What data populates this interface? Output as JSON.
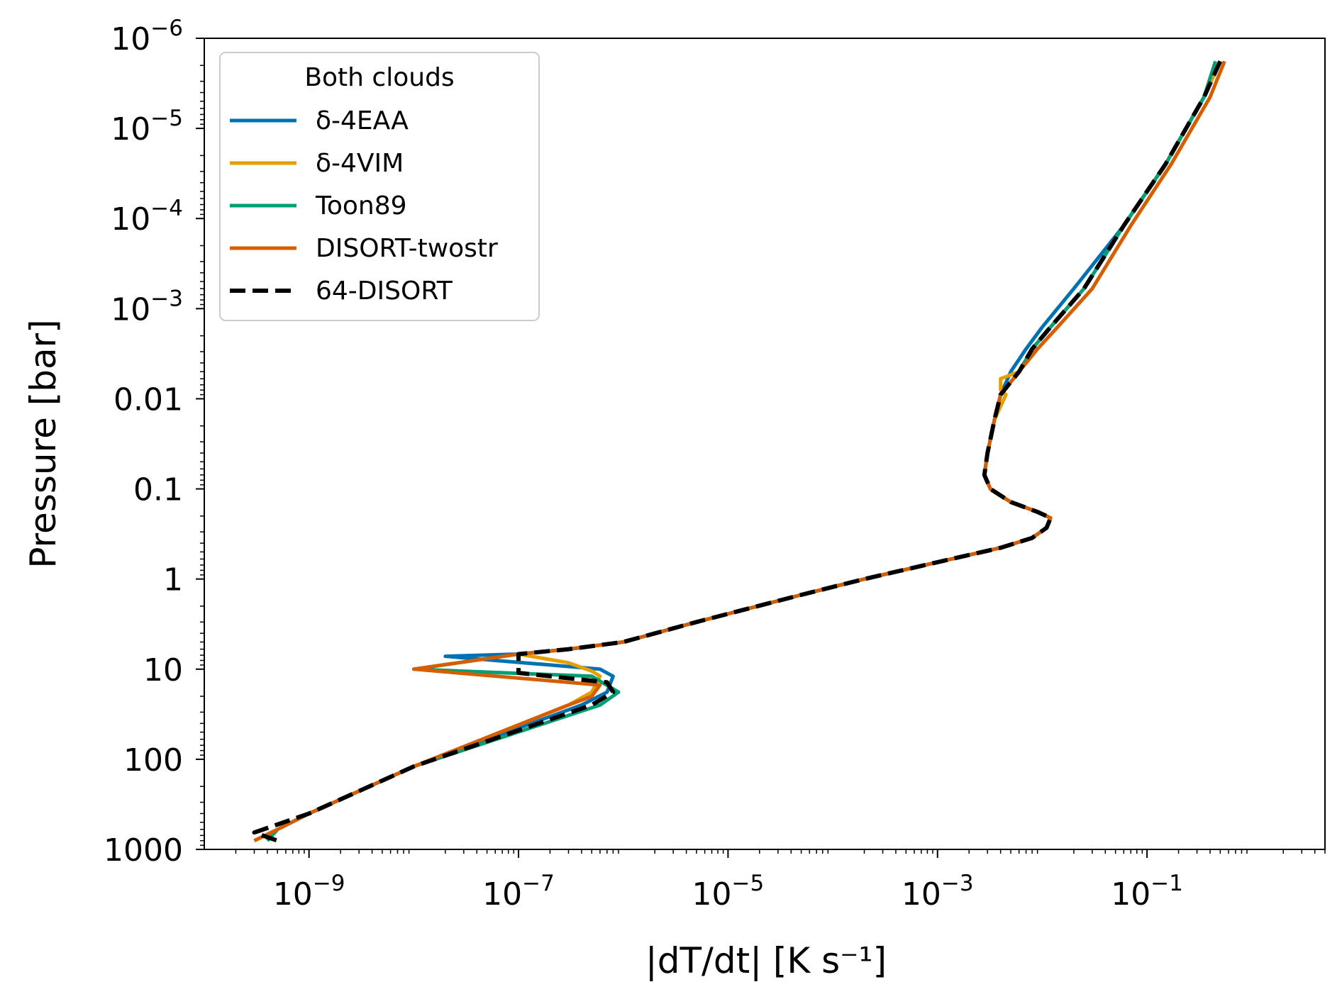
{
  "chart_data": {
    "type": "line",
    "title": "",
    "xlabel": "|dT/dt| [K s⁻¹]",
    "ylabel": "Pressure [bar]",
    "xscale": "log",
    "yscale": "log",
    "y_inverted": true,
    "xlim": [
      1e-10,
      5
    ],
    "ylim": [
      1000,
      1e-06
    ],
    "grid": false,
    "legend_title": "Both clouds",
    "legend_position": "top-left",
    "x_ticks": [
      {
        "value": 1e-09,
        "base": "10",
        "exp": "−9"
      },
      {
        "value": 1e-07,
        "base": "10",
        "exp": "−7"
      },
      {
        "value": 1e-05,
        "base": "10",
        "exp": "−5"
      },
      {
        "value": 0.001,
        "base": "10",
        "exp": "−3"
      },
      {
        "value": 0.1,
        "base": "10",
        "exp": "−1"
      }
    ],
    "y_ticks": [
      {
        "value": 1e-06,
        "base": "10",
        "exp": "−6"
      },
      {
        "value": 1e-05,
        "base": "10",
        "exp": "−5"
      },
      {
        "value": 0.0001,
        "base": "10",
        "exp": "−4"
      },
      {
        "value": 0.001,
        "base": "10",
        "exp": "−3"
      },
      {
        "value": 0.01,
        "base": "0.01",
        "exp": ""
      },
      {
        "value": 0.1,
        "base": "0.1",
        "exp": ""
      },
      {
        "value": 1,
        "base": "1",
        "exp": ""
      },
      {
        "value": 10,
        "base": "10",
        "exp": ""
      },
      {
        "value": 100,
        "base": "100",
        "exp": ""
      },
      {
        "value": 1000,
        "base": "1000",
        "exp": ""
      }
    ],
    "series": [
      {
        "name": "δ-4EAA",
        "color": "#0072B2",
        "style": "solid",
        "points": [
          [
            0.5,
            1.8e-06
          ],
          [
            0.35,
            4.5e-06
          ],
          [
            0.15,
            2.5e-05
          ],
          [
            0.06,
            0.00012
          ],
          [
            0.02,
            0.0006
          ],
          [
            0.01,
            0.0016
          ],
          [
            0.007,
            0.0028
          ],
          [
            0.005,
            0.005
          ],
          [
            0.004,
            0.009
          ],
          [
            0.0035,
            0.017
          ],
          [
            0.003,
            0.04
          ],
          [
            0.0028,
            0.07
          ],
          [
            0.0032,
            0.1
          ],
          [
            0.005,
            0.14
          ],
          [
            0.009,
            0.18
          ],
          [
            0.012,
            0.21
          ],
          [
            0.011,
            0.27
          ],
          [
            0.008,
            0.35
          ],
          [
            0.004,
            0.45
          ],
          [
            0.001,
            0.65
          ],
          [
            0.0002,
            1.0
          ],
          [
            5e-05,
            1.5
          ],
          [
            5e-06,
            3.0
          ],
          [
            1e-06,
            5.0
          ],
          [
            3e-07,
            6.0
          ],
          [
            1e-07,
            6.8
          ],
          [
            2e-08,
            7.2
          ],
          [
            6e-07,
            10.0
          ],
          [
            8e-07,
            12.0
          ],
          [
            7e-07,
            18.0
          ],
          [
            4e-07,
            25.0
          ],
          [
            1e-08,
            120.0
          ],
          [
            1e-09,
            400.0
          ],
          [
            5e-10,
            600.0
          ],
          [
            4e-10,
            800.0
          ]
        ]
      },
      {
        "name": "δ-4VIM",
        "color": "#E69F00",
        "style": "solid",
        "points": [
          [
            0.5,
            1.8e-06
          ],
          [
            0.35,
            4.5e-06
          ],
          [
            0.15,
            2.5e-05
          ],
          [
            0.06,
            0.00012
          ],
          [
            0.025,
            0.0006
          ],
          [
            0.012,
            0.0016
          ],
          [
            0.008,
            0.0028
          ],
          [
            0.006,
            0.005
          ],
          [
            0.004,
            0.006
          ],
          [
            0.004,
            0.008
          ],
          [
            0.0045,
            0.009
          ],
          [
            0.0035,
            0.017
          ],
          [
            0.003,
            0.04
          ],
          [
            0.0028,
            0.07
          ],
          [
            0.0032,
            0.1
          ],
          [
            0.005,
            0.14
          ],
          [
            0.009,
            0.18
          ],
          [
            0.012,
            0.21
          ],
          [
            0.011,
            0.27
          ],
          [
            0.008,
            0.35
          ],
          [
            0.004,
            0.45
          ],
          [
            0.001,
            0.65
          ],
          [
            0.0002,
            1.0
          ],
          [
            5e-05,
            1.5
          ],
          [
            5e-06,
            3.0
          ],
          [
            1e-06,
            5.0
          ],
          [
            3e-07,
            6.0
          ],
          [
            1e-07,
            6.8
          ],
          [
            3e-07,
            8.5
          ],
          [
            5e-07,
            10.5
          ],
          [
            6e-07,
            12.0
          ],
          [
            5e-07,
            18.0
          ],
          [
            3e-07,
            25.0
          ],
          [
            1e-08,
            120.0
          ],
          [
            1e-09,
            400.0
          ],
          [
            5e-10,
            600.0
          ],
          [
            3e-10,
            800.0
          ]
        ]
      },
      {
        "name": "Toon89",
        "color": "#009E73",
        "style": "solid",
        "points": [
          [
            0.45,
            1.8e-06
          ],
          [
            0.35,
            4.5e-06
          ],
          [
            0.15,
            2.5e-05
          ],
          [
            0.06,
            0.00012
          ],
          [
            0.025,
            0.0006
          ],
          [
            0.012,
            0.0016
          ],
          [
            0.008,
            0.0028
          ],
          [
            0.006,
            0.005
          ],
          [
            0.004,
            0.009
          ],
          [
            0.0035,
            0.017
          ],
          [
            0.003,
            0.04
          ],
          [
            0.0028,
            0.07
          ],
          [
            0.0032,
            0.1
          ],
          [
            0.005,
            0.14
          ],
          [
            0.009,
            0.18
          ],
          [
            0.012,
            0.21
          ],
          [
            0.011,
            0.27
          ],
          [
            0.008,
            0.35
          ],
          [
            0.004,
            0.45
          ],
          [
            0.001,
            0.65
          ],
          [
            0.0002,
            1.0
          ],
          [
            5e-05,
            1.5
          ],
          [
            5e-06,
            3.0
          ],
          [
            1e-06,
            5.0
          ],
          [
            3e-07,
            6.0
          ],
          [
            1e-07,
            6.8
          ],
          [
            1e-08,
            10.0
          ],
          [
            5e-07,
            12.0
          ],
          [
            9e-07,
            18.0
          ],
          [
            6e-07,
            25.0
          ],
          [
            1e-08,
            120.0
          ],
          [
            1e-09,
            400.0
          ],
          [
            5e-10,
            600.0
          ],
          [
            4e-10,
            800.0
          ]
        ]
      },
      {
        "name": "DISORT-twostr",
        "color": "#D55E00",
        "style": "solid",
        "points": [
          [
            0.55,
            1.8e-06
          ],
          [
            0.4,
            4.5e-06
          ],
          [
            0.17,
            2.5e-05
          ],
          [
            0.07,
            0.00012
          ],
          [
            0.03,
            0.0006
          ],
          [
            0.014,
            0.0016
          ],
          [
            0.009,
            0.0028
          ],
          [
            0.006,
            0.005
          ],
          [
            0.004,
            0.009
          ],
          [
            0.0035,
            0.017
          ],
          [
            0.003,
            0.04
          ],
          [
            0.0028,
            0.07
          ],
          [
            0.0032,
            0.1
          ],
          [
            0.005,
            0.14
          ],
          [
            0.009,
            0.18
          ],
          [
            0.012,
            0.21
          ],
          [
            0.011,
            0.27
          ],
          [
            0.008,
            0.35
          ],
          [
            0.004,
            0.45
          ],
          [
            0.001,
            0.65
          ],
          [
            0.0002,
            1.0
          ],
          [
            5e-05,
            1.5
          ],
          [
            5e-06,
            3.0
          ],
          [
            1e-06,
            5.0
          ],
          [
            3e-07,
            6.0
          ],
          [
            1e-07,
            6.8
          ],
          [
            1e-08,
            10.0
          ],
          [
            6e-07,
            15.0
          ],
          [
            5e-07,
            20.0
          ],
          [
            3e-07,
            25.0
          ],
          [
            1e-08,
            120.0
          ],
          [
            1e-09,
            400.0
          ],
          [
            5e-10,
            600.0
          ],
          [
            3e-10,
            800.0
          ]
        ]
      },
      {
        "name": "64-DISORT",
        "color": "#000000",
        "style": "dashed",
        "points": [
          [
            0.5,
            1.8e-06
          ],
          [
            0.35,
            4.5e-06
          ],
          [
            0.15,
            2.5e-05
          ],
          [
            0.06,
            0.00012
          ],
          [
            0.025,
            0.0006
          ],
          [
            0.012,
            0.0016
          ],
          [
            0.008,
            0.0028
          ],
          [
            0.006,
            0.005
          ],
          [
            0.004,
            0.009
          ],
          [
            0.0035,
            0.017
          ],
          [
            0.003,
            0.04
          ],
          [
            0.0028,
            0.07
          ],
          [
            0.0032,
            0.1
          ],
          [
            0.005,
            0.14
          ],
          [
            0.009,
            0.18
          ],
          [
            0.012,
            0.21
          ],
          [
            0.011,
            0.27
          ],
          [
            0.008,
            0.35
          ],
          [
            0.004,
            0.45
          ],
          [
            0.001,
            0.65
          ],
          [
            0.0002,
            1.0
          ],
          [
            5e-05,
            1.5
          ],
          [
            5e-06,
            3.0
          ],
          [
            1e-06,
            5.0
          ],
          [
            3e-07,
            6.0
          ],
          [
            1e-07,
            6.8
          ],
          [
            1e-07,
            10.0
          ],
          [
            1e-07,
            11.0
          ],
          [
            7e-07,
            14.0
          ],
          [
            8e-07,
            18.0
          ],
          [
            5e-07,
            25.0
          ],
          [
            1e-08,
            120.0
          ],
          [
            1e-09,
            400.0
          ],
          [
            3e-10,
            650.0
          ],
          [
            5e-10,
            800.0
          ]
        ]
      }
    ]
  }
}
